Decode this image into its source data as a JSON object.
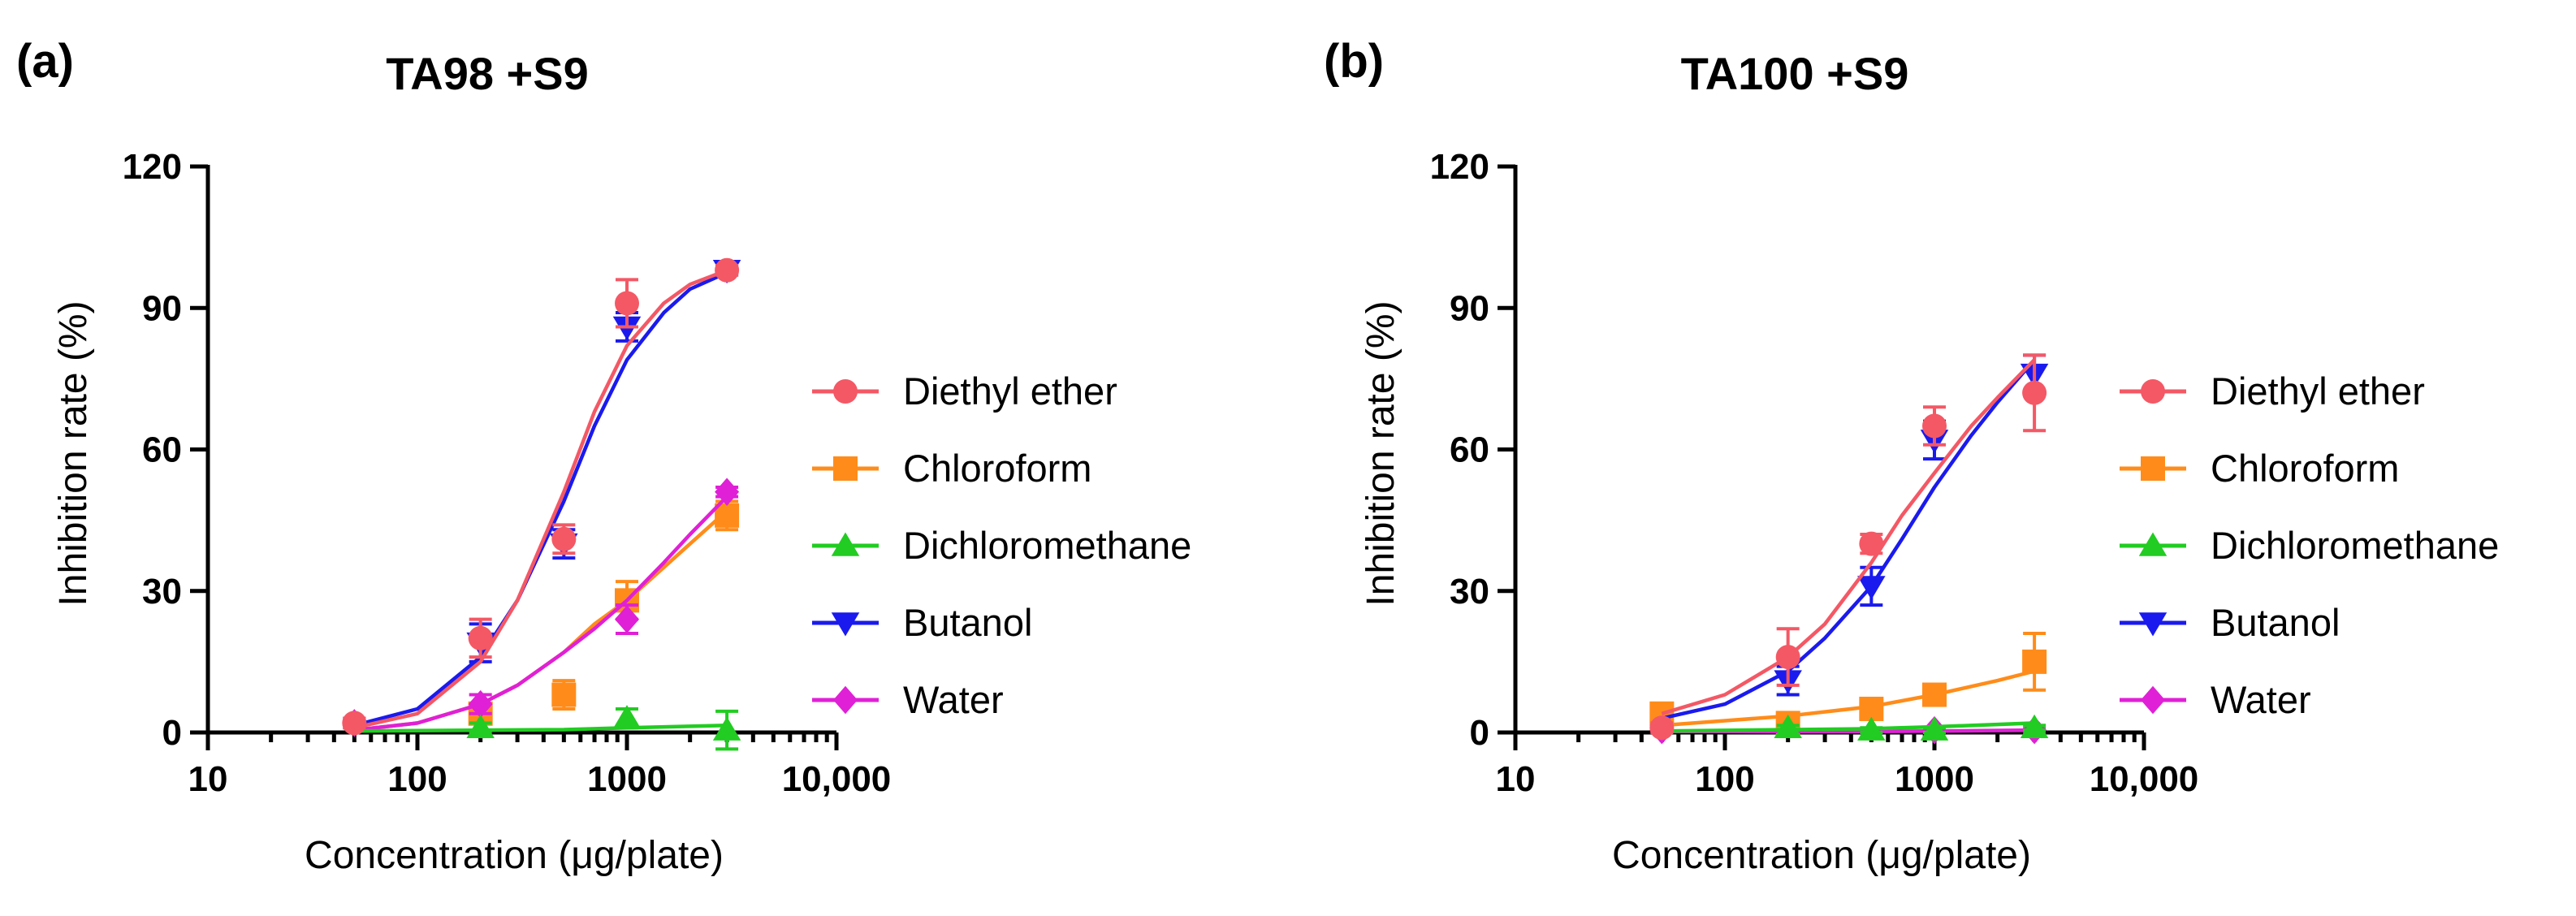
{
  "chart_data": [
    {
      "type": "scatter",
      "panel_label": "(a)",
      "title": "TA98 +S9",
      "xlabel": "Concentration (μg/plate)",
      "ylabel": "Inhibition rate (%)",
      "x_scale": "log",
      "xlim": [
        10,
        10000
      ],
      "ylim": [
        0,
        120
      ],
      "x_ticks": [
        10,
        100,
        1000,
        10000
      ],
      "x_tick_labels": [
        "10",
        "100",
        "1000",
        "10,000"
      ],
      "y_ticks": [
        0,
        30,
        60,
        90,
        120
      ],
      "y_tick_labels": [
        "0",
        "30",
        "60",
        "90",
        "120"
      ],
      "grid": false,
      "legend_position": "right",
      "series": [
        {
          "name": "Diethyl ether",
          "color": "#f45865",
          "marker": "circle",
          "x": [
            50,
            200,
            500,
            1000,
            3000
          ],
          "y": [
            2,
            20,
            41,
            91,
            98
          ],
          "err": [
            1,
            4,
            3,
            5,
            1
          ],
          "curve": [
            [
              50,
              1.0
            ],
            [
              100,
              4.0
            ],
            [
              200,
              15.0
            ],
            [
              300,
              28.0
            ],
            [
              500,
              51.0
            ],
            [
              700,
              68.0
            ],
            [
              1000,
              82.0
            ],
            [
              1500,
              91.0
            ],
            [
              2000,
              95.0
            ],
            [
              3000,
              98.0
            ]
          ]
        },
        {
          "name": "Chloroform",
          "color": "#ff8c1a",
          "marker": "square",
          "x": [
            200,
            500,
            1000,
            3000
          ],
          "y": [
            4,
            8,
            28,
            46
          ],
          "err": [
            2,
            3,
            4,
            3
          ],
          "curve": [
            [
              50,
              0.5
            ],
            [
              100,
              2.0
            ],
            [
              200,
              6.0
            ],
            [
              300,
              10.0
            ],
            [
              500,
              17.0
            ],
            [
              700,
              23.0
            ],
            [
              1000,
              28.0
            ],
            [
              1500,
              35.0
            ],
            [
              2000,
              40.0
            ],
            [
              3000,
              47.0
            ]
          ]
        },
        {
          "name": "Dichloromethane",
          "color": "#22cc22",
          "marker": "triangle-up",
          "x": [
            200,
            1000,
            3000
          ],
          "y": [
            1,
            3,
            0.5
          ],
          "err": [
            1,
            2,
            4
          ],
          "curve": [
            [
              50,
              0.3
            ],
            [
              500,
              0.6
            ],
            [
              1000,
              1.0
            ],
            [
              3000,
              1.5
            ]
          ]
        },
        {
          "name": "Butanol",
          "color": "#1a1aee",
          "marker": "triangle-down",
          "x": [
            200,
            500,
            1000,
            3000
          ],
          "y": [
            19,
            40,
            86,
            98
          ],
          "err": [
            4,
            3,
            3,
            1
          ],
          "curve": [
            [
              50,
              1.5
            ],
            [
              100,
              5.0
            ],
            [
              200,
              16.0
            ],
            [
              300,
              28.0
            ],
            [
              500,
              49.0
            ],
            [
              700,
              65.0
            ],
            [
              1000,
              79.0
            ],
            [
              1500,
              89.0
            ],
            [
              2000,
              94.0
            ],
            [
              3000,
              97.5
            ]
          ]
        },
        {
          "name": "Water",
          "color": "#e020d6",
          "marker": "diamond",
          "x": [
            50,
            200,
            1000,
            3000
          ],
          "y": [
            2,
            6,
            24,
            51
          ],
          "err": [
            1,
            2,
            3,
            1
          ],
          "curve": [
            [
              50,
              0.5
            ],
            [
              100,
              2.0
            ],
            [
              200,
              6.0
            ],
            [
              300,
              10.0
            ],
            [
              500,
              17.0
            ],
            [
              700,
              22.0
            ],
            [
              1000,
              28.0
            ],
            [
              1500,
              36.0
            ],
            [
              2000,
              42.0
            ],
            [
              3000,
              50.0
            ]
          ]
        }
      ]
    },
    {
      "type": "scatter",
      "panel_label": "(b)",
      "title": "TA100 +S9",
      "xlabel": "Concentration (μg/plate)",
      "ylabel": "Inhibition rate (%)",
      "x_scale": "log",
      "xlim": [
        10,
        10000
      ],
      "ylim": [
        0,
        120
      ],
      "x_ticks": [
        10,
        100,
        1000,
        10000
      ],
      "x_tick_labels": [
        "10",
        "100",
        "1000",
        "10,000"
      ],
      "y_ticks": [
        0,
        30,
        60,
        90,
        120
      ],
      "y_tick_labels": [
        "0",
        "30",
        "60",
        "90",
        "120"
      ],
      "grid": false,
      "legend_position": "right",
      "series": [
        {
          "name": "Diethyl ether",
          "color": "#f45865",
          "marker": "circle",
          "x": [
            50,
            200,
            500,
            1000,
            3000
          ],
          "y": [
            1,
            16,
            40,
            65,
            72
          ],
          "err": [
            1,
            6,
            2,
            4,
            8
          ],
          "curve": [
            [
              50,
              4.0
            ],
            [
              100,
              8.0
            ],
            [
              200,
              16.0
            ],
            [
              300,
              23.0
            ],
            [
              500,
              36.0
            ],
            [
              700,
              46.0
            ],
            [
              1000,
              55.0
            ],
            [
              1500,
              65.0
            ],
            [
              2000,
              71.0
            ],
            [
              3000,
              79.0
            ]
          ]
        },
        {
          "name": "Chloroform",
          "color": "#ff8c1a",
          "marker": "square",
          "x": [
            50,
            200,
            500,
            1000,
            3000
          ],
          "y": [
            4,
            2,
            5,
            8,
            15
          ],
          "err": [
            1,
            1,
            1,
            2,
            6
          ],
          "curve": [
            [
              50,
              1.5
            ],
            [
              100,
              2.5
            ],
            [
              200,
              3.5
            ],
            [
              500,
              5.5
            ],
            [
              1000,
              8.0
            ],
            [
              2000,
              11.0
            ],
            [
              3000,
              13.0
            ]
          ]
        },
        {
          "name": "Dichloromethane",
          "color": "#22cc22",
          "marker": "triangle-up",
          "x": [
            200,
            500,
            1000,
            3000
          ],
          "y": [
            1,
            0.5,
            0.5,
            1
          ],
          "err": [
            0.5,
            0.5,
            0.5,
            0.5
          ],
          "curve": [
            [
              50,
              0.3
            ],
            [
              500,
              0.8
            ],
            [
              1000,
              1.2
            ],
            [
              3000,
              2.0
            ]
          ]
        },
        {
          "name": "Butanol",
          "color": "#1a1aee",
          "marker": "triangle-down",
          "x": [
            200,
            500,
            1000,
            3000
          ],
          "y": [
            11,
            31,
            62,
            76
          ],
          "err": [
            3,
            4,
            4,
            4
          ],
          "curve": [
            [
              50,
              3.0
            ],
            [
              100,
              6.0
            ],
            [
              200,
              13.0
            ],
            [
              300,
              20.0
            ],
            [
              500,
              31.0
            ],
            [
              700,
              41.0
            ],
            [
              1000,
              52.0
            ],
            [
              1500,
              63.0
            ],
            [
              2000,
              70.0
            ],
            [
              3000,
              79.0
            ]
          ]
        },
        {
          "name": "Water",
          "color": "#e020d6",
          "marker": "diamond",
          "x": [
            50,
            1000,
            3000
          ],
          "y": [
            0.5,
            0.5,
            0.5
          ],
          "err": [
            0.3,
            0.3,
            0.3
          ],
          "curve": [
            [
              50,
              0.2
            ],
            [
              500,
              0.2
            ],
            [
              1000,
              0.3
            ],
            [
              3000,
              0.5
            ]
          ]
        }
      ]
    }
  ]
}
